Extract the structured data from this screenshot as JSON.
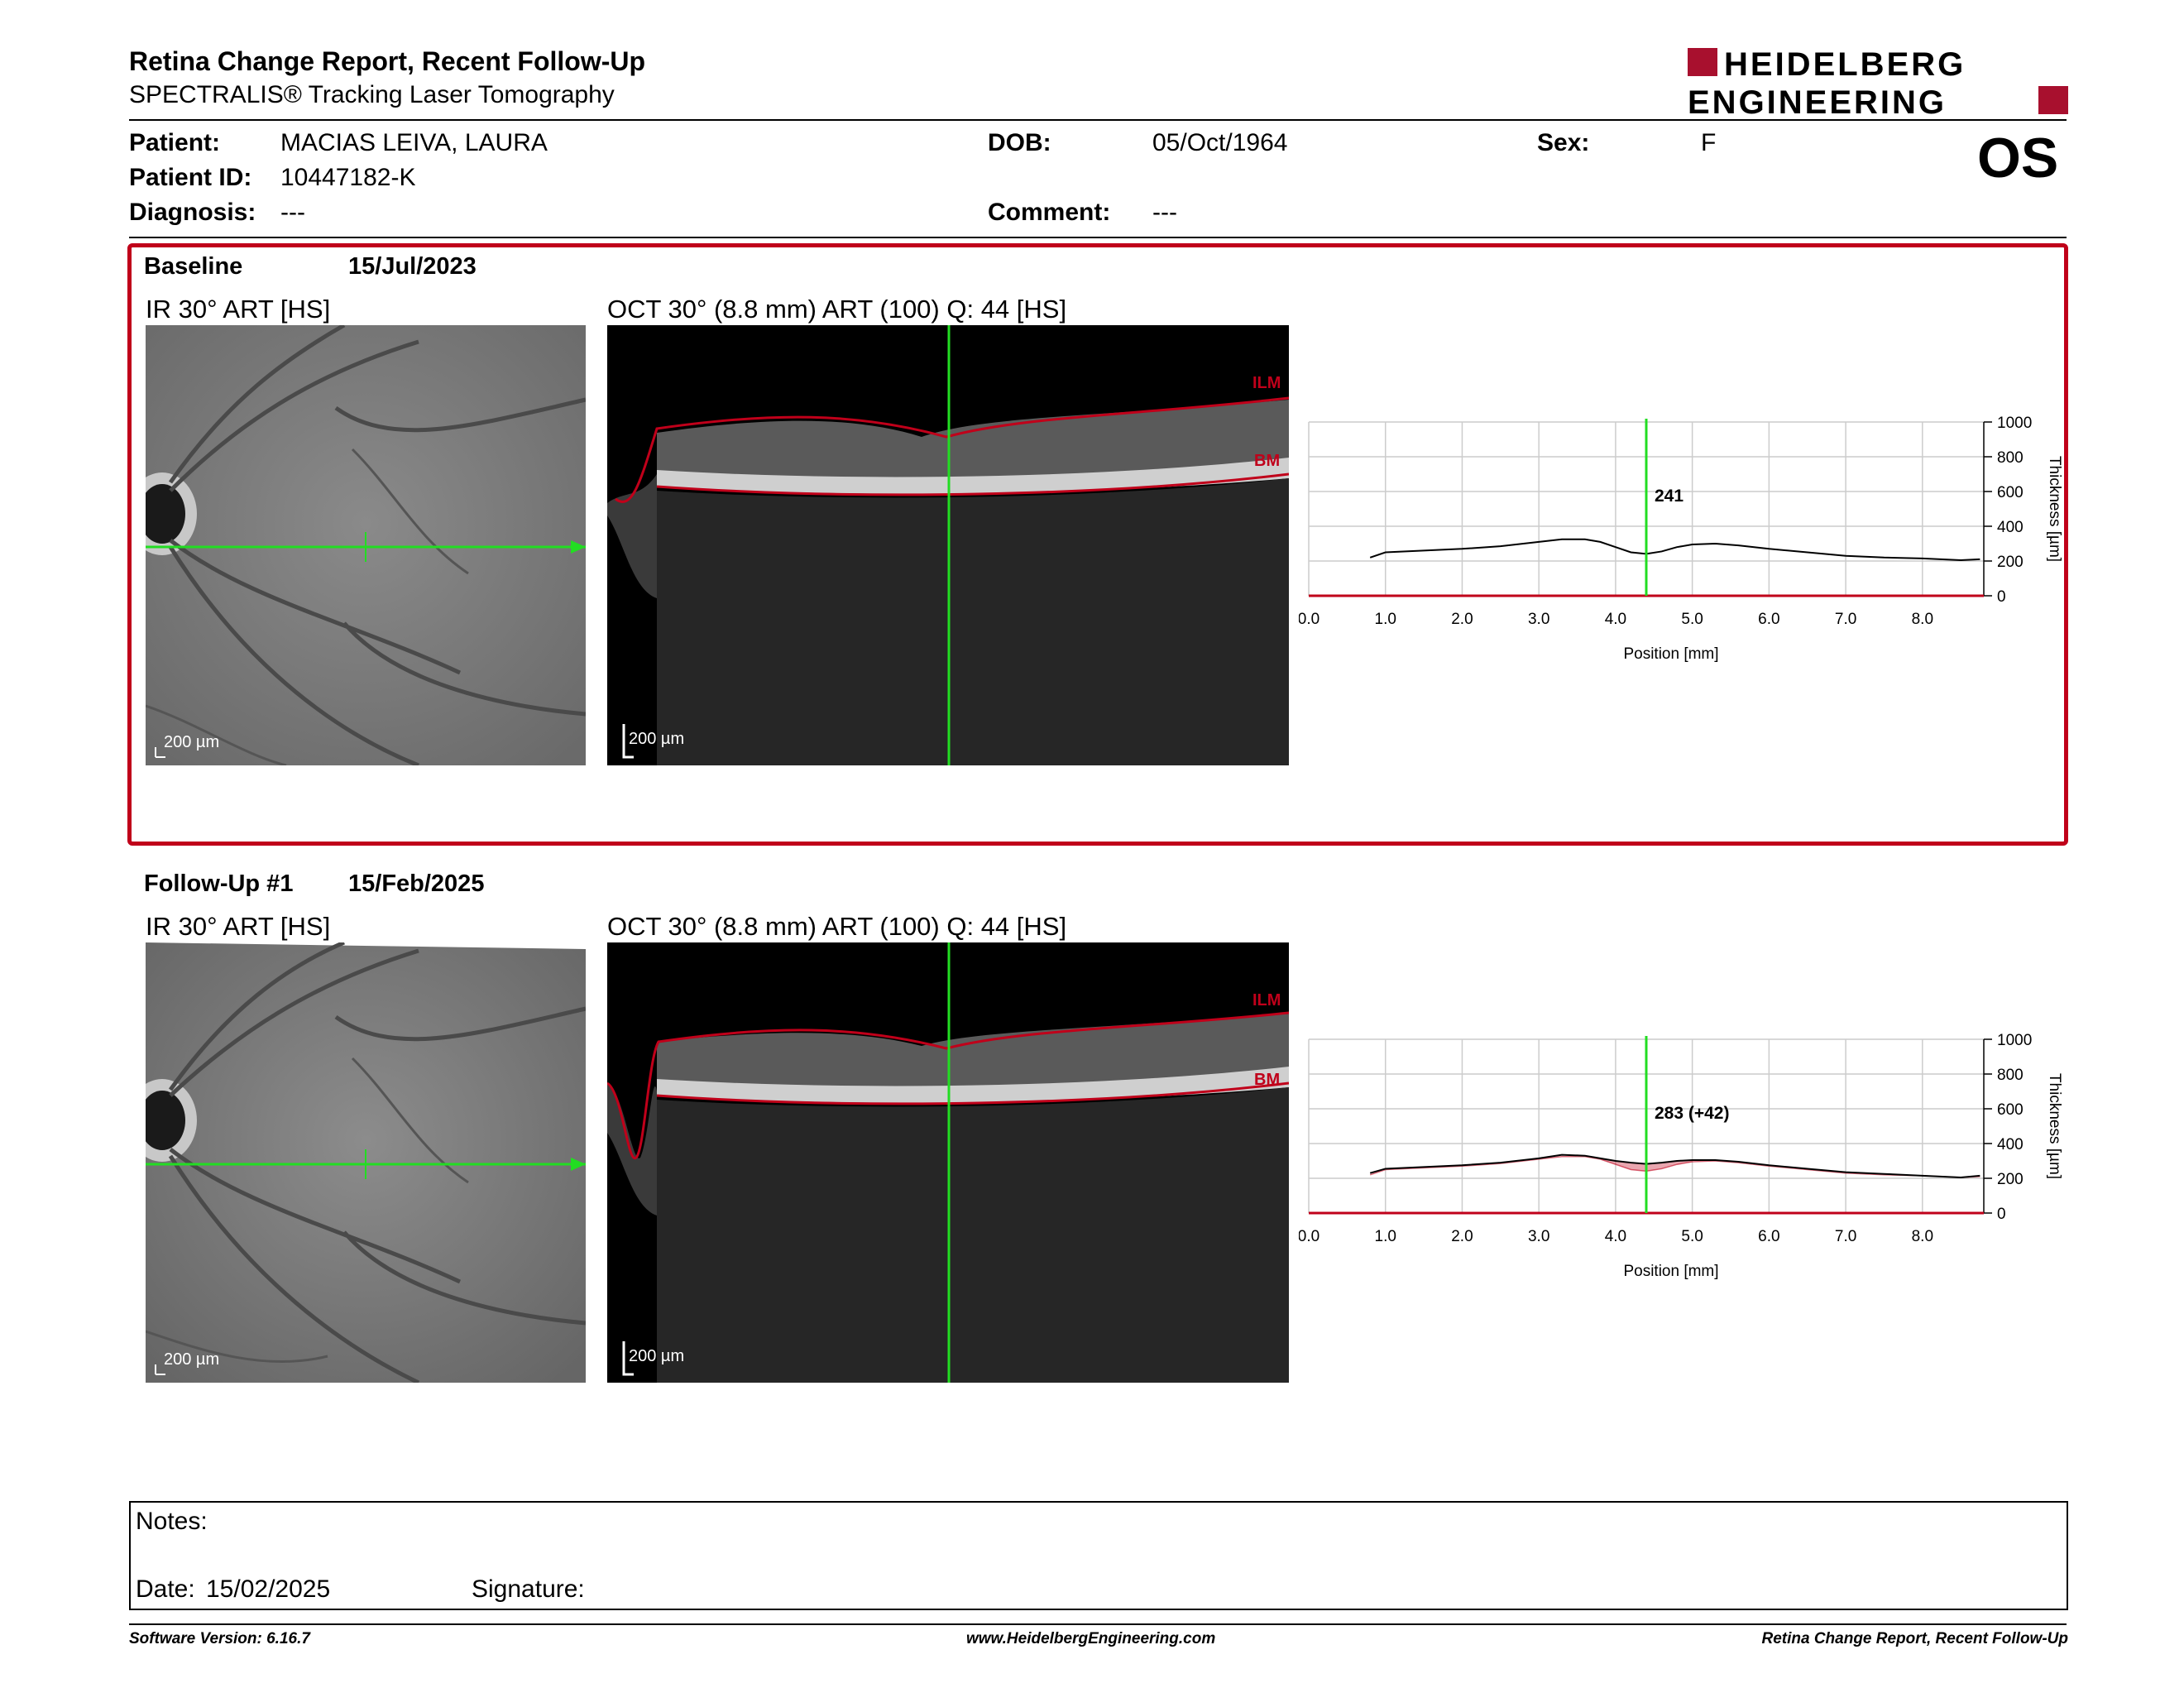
{
  "header": {
    "title": "Retina Change Report, Recent Follow-Up",
    "subtitle": "SPECTRALIS® Tracking Laser Tomography",
    "logo_line1": "HEIDELBERG",
    "logo_line2": "ENGINEERING",
    "eye": "OS"
  },
  "patient": {
    "name_label": "Patient:",
    "name": "MACIAS LEIVA, LAURA",
    "dob_label": "DOB:",
    "dob": "05/Oct/1964",
    "sex_label": "Sex:",
    "sex": "F",
    "id_label": "Patient ID:",
    "id": "10447182-K",
    "diagnosis_label": "Diagnosis:",
    "diagnosis": "---",
    "comment_label": "Comment:",
    "comment": "---"
  },
  "exams": [
    {
      "label": "Baseline",
      "date": "15/Jul/2023",
      "ir_title": "IR 30° ART [HS]",
      "oct_title": "OCT 30° (8.8 mm) ART (100) Q: 44 [HS]",
      "ir_scale": "200 µm",
      "oct_scale": "200 µm",
      "ilm_label": "ILM",
      "bm_label": "BM"
    },
    {
      "label": "Follow-Up #1",
      "date": "15/Feb/2025",
      "ir_title": "IR 30° ART [HS]",
      "oct_title": "OCT 30° (8.8 mm) ART (100) Q: 44 [HS]",
      "ir_scale": "200 µm",
      "oct_scale": "200 µm",
      "ilm_label": "ILM",
      "bm_label": "BM"
    }
  ],
  "chart_data": [
    {
      "type": "line",
      "xlabel": "Position [mm]",
      "ylabel": "Thickness [µm]",
      "xlim": [
        0,
        8.8
      ],
      "ylim": [
        0,
        1000
      ],
      "xticks": [
        "0.0",
        "1.0",
        "2.0",
        "3.0",
        "4.0",
        "5.0",
        "6.0",
        "7.0",
        "8.0"
      ],
      "yticks": [
        "0",
        "200",
        "400",
        "600",
        "800",
        "1000"
      ],
      "grid": true,
      "cursor_x": 4.4,
      "cursor_label": "241",
      "series": [
        {
          "color": "#000000",
          "x": [
            0.8,
            1.0,
            1.5,
            2.0,
            2.5,
            3.0,
            3.3,
            3.6,
            3.8,
            4.0,
            4.2,
            4.4,
            4.6,
            4.8,
            5.0,
            5.3,
            5.6,
            6.0,
            6.5,
            7.0,
            7.5,
            8.0,
            8.5,
            8.75
          ],
          "y": [
            220,
            250,
            260,
            270,
            285,
            310,
            325,
            325,
            310,
            280,
            250,
            241,
            255,
            280,
            295,
            300,
            290,
            270,
            250,
            230,
            220,
            215,
            205,
            210
          ]
        }
      ]
    },
    {
      "type": "line",
      "xlabel": "Position [mm]",
      "ylabel": "Thickness [µm]",
      "xlim": [
        0,
        8.8
      ],
      "ylim": [
        0,
        1000
      ],
      "xticks": [
        "0.0",
        "1.0",
        "2.0",
        "3.0",
        "4.0",
        "5.0",
        "6.0",
        "7.0",
        "8.0"
      ],
      "yticks": [
        "0",
        "200",
        "400",
        "600",
        "800",
        "1000"
      ],
      "grid": true,
      "cursor_x": 4.4,
      "cursor_label": "283 (+42)",
      "series": [
        {
          "color": "#000000",
          "x": [
            0.8,
            1.0,
            1.5,
            2.0,
            2.5,
            3.0,
            3.3,
            3.6,
            3.8,
            4.0,
            4.2,
            4.4,
            4.6,
            4.8,
            5.0,
            5.3,
            5.6,
            6.0,
            6.5,
            7.0,
            7.5,
            8.0,
            8.5,
            8.75
          ],
          "y": [
            230,
            255,
            265,
            275,
            290,
            315,
            335,
            330,
            315,
            300,
            290,
            283,
            290,
            300,
            305,
            305,
            295,
            275,
            255,
            235,
            225,
            215,
            205,
            215
          ]
        }
      ],
      "difference_fill_color": "#c0001a"
    }
  ],
  "notes": {
    "notes_label": "Notes:",
    "date_label": "Date:",
    "date": "15/02/2025",
    "signature_label": "Signature:"
  },
  "footer": {
    "software": "Software Version: 6.16.7",
    "website": "www.HeidelbergEngineering.com",
    "report_name": "Retina Change Report, Recent Follow-Up"
  }
}
